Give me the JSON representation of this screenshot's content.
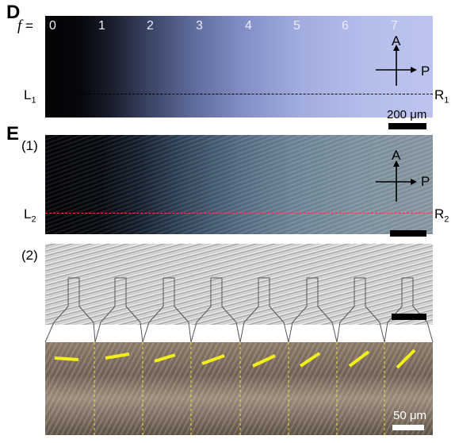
{
  "panel_d": {
    "letter": "D",
    "f_label_var": "f",
    "f_label_eq": " =",
    "frame_numbers": [
      "0",
      "1",
      "2",
      "3",
      "4",
      "5",
      "6",
      "7"
    ],
    "left_label": "L",
    "left_sub": "1",
    "right_label": "R",
    "right_sub": "1",
    "axis_a": "A",
    "axis_p": "P",
    "scale_text": "200 μm"
  },
  "panel_e": {
    "letter": "E",
    "sub1": "(1)",
    "sub2": "(2)",
    "left_label": "L",
    "left_sub": "2",
    "right_label": "R",
    "right_sub": "2",
    "axis_a": "A",
    "axis_p": "P",
    "scale_text": "50 μm"
  },
  "colors": {
    "red_line": "#ff3b3b",
    "yellow_mark": "#f2ee1c"
  }
}
